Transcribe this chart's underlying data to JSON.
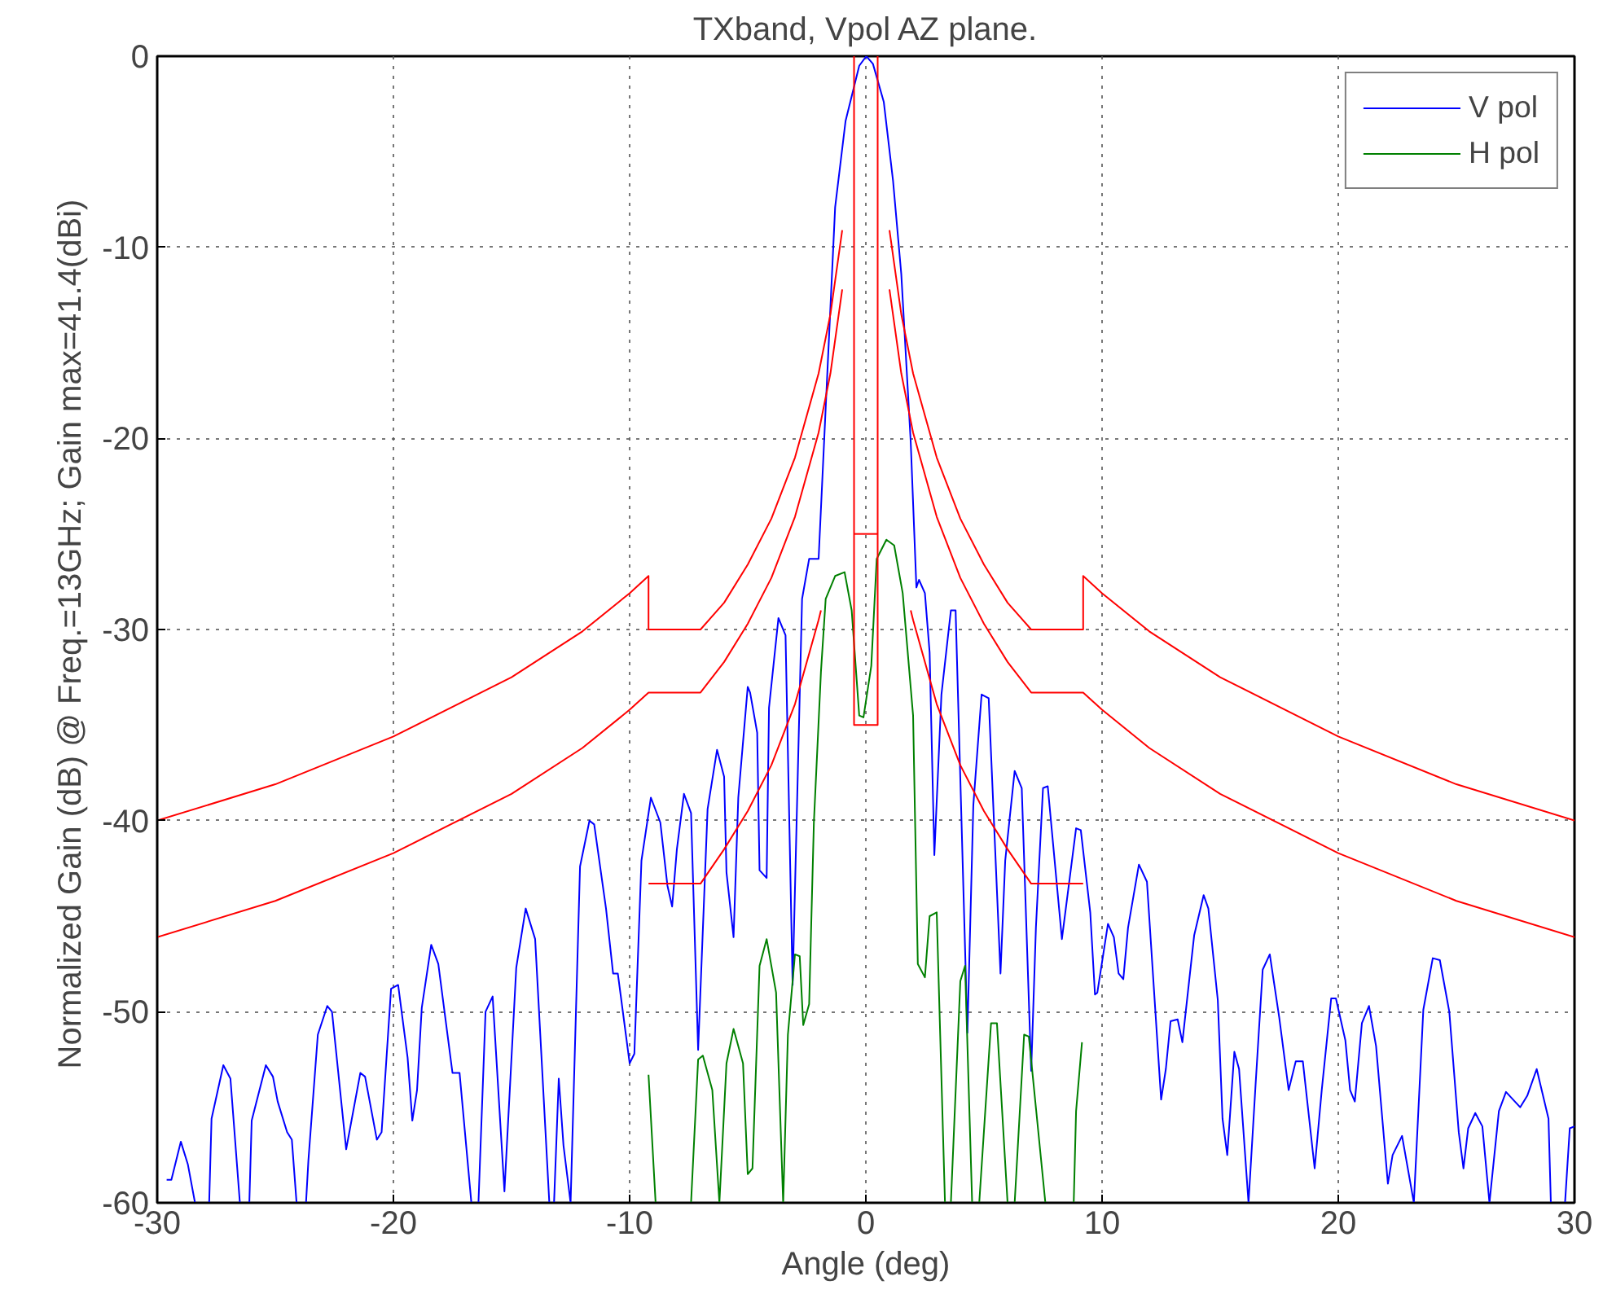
{
  "chart_data": {
    "type": "line",
    "title": "TXband, Vpol AZ plane.",
    "xlabel": "Angle (deg)",
    "ylabel": "Normalized Gain (dB)  @ Freq.=13GHz; Gain max=41.4(dBi)",
    "xlim": [
      -30,
      30
    ],
    "ylim": [
      -60,
      0
    ],
    "xticks": [
      -30,
      -20,
      -10,
      0,
      10,
      20,
      30
    ],
    "yticks": [
      -60,
      -50,
      -40,
      -30,
      -20,
      -10,
      0
    ],
    "grid": true,
    "legend": "top right",
    "series": [
      {
        "name": "V pol",
        "color": "#0000ff",
        "x": [
          -29.6,
          -29.4,
          -29.0,
          -28.7,
          -28.4,
          -27.8,
          -27.7,
          -27.2,
          -26.9,
          -26.5,
          -26.1,
          -26.0,
          -25.4,
          -25.1,
          -24.9,
          -24.5,
          -24.3,
          -24.1,
          -23.7,
          -23.6,
          -23.2,
          -22.8,
          -22.6,
          -22.0,
          -21.4,
          -21.2,
          -20.7,
          -20.5,
          -20.1,
          -19.8,
          -19.4,
          -19.2,
          -19.0,
          -18.8,
          -18.4,
          -18.1,
          -17.5,
          -17.2,
          -16.7,
          -16.4,
          -16.1,
          -15.8,
          -15.3,
          -14.8,
          -14.4,
          -14.0,
          -13.4,
          -13.2,
          -13.0,
          -12.8,
          -12.5,
          -12.1,
          -11.7,
          -11.5,
          -11.0,
          -10.7,
          -10.5,
          -10.0,
          -9.8,
          -9.5,
          -9.1,
          -8.7,
          -8.4,
          -8.2,
          -8.0,
          -7.7,
          -7.4,
          -7.1,
          -6.7,
          -6.3,
          -6.0,
          -5.9,
          -5.6,
          -5.4,
          -5.0,
          -4.9,
          -4.6,
          -4.5,
          -4.2,
          -4.1,
          -3.7,
          -3.4,
          -3.1,
          -2.7,
          -2.4,
          -2.0,
          -1.7,
          -1.3,
          -0.86,
          -0.28,
          0.02,
          0.3,
          0.76,
          1.15,
          1.5,
          1.9,
          2.14,
          2.25,
          2.5,
          2.7,
          2.9,
          3.2,
          3.6,
          3.8,
          4.3,
          4.55,
          4.9,
          5.2,
          5.7,
          5.9,
          6.3,
          6.6,
          7.0,
          7.2,
          7.5,
          7.7,
          8.3,
          8.9,
          9.1,
          9.5,
          9.7,
          9.8,
          10.25,
          10.5,
          10.7,
          10.9,
          11.1,
          11.56,
          11.9,
          12.5,
          12.7,
          12.9,
          13.2,
          13.4,
          13.9,
          14.3,
          14.5,
          14.9,
          15.1,
          15.3,
          15.6,
          15.8,
          16.2,
          16.5,
          16.8,
          17.1,
          17.5,
          17.9,
          18.2,
          18.5,
          19.0,
          19.3,
          19.7,
          19.9,
          20.3,
          20.5,
          20.7,
          21.0,
          21.3,
          21.6,
          22.1,
          22.3,
          22.7,
          23.2,
          23.6,
          24.0,
          24.3,
          24.7,
          25.1,
          25.3,
          25.5,
          25.8,
          26.1,
          26.4,
          26.8,
          27.1,
          27.7,
          28.0,
          28.4,
          28.9,
          29.0,
          29.6,
          29.8,
          30.0
        ],
        "values": [
          -58.8,
          -58.8,
          -56.8,
          -58.0,
          -60,
          -60,
          -55.6,
          -52.8,
          -53.5,
          -60,
          -60,
          -55.7,
          -52.8,
          -53.4,
          -54.7,
          -56.3,
          -56.7,
          -60,
          -60,
          -57.8,
          -51.2,
          -49.7,
          -50.0,
          -57.2,
          -53.2,
          -53.4,
          -56.7,
          -56.3,
          -48.8,
          -48.6,
          -52.4,
          -55.7,
          -54.1,
          -49.8,
          -46.5,
          -47.5,
          -53.2,
          -53.2,
          -60,
          -60,
          -50.0,
          -49.2,
          -59.4,
          -47.7,
          -44.6,
          -46.2,
          -60,
          -60,
          -53.5,
          -57.0,
          -60,
          -42.4,
          -40.0,
          -40.2,
          -44.6,
          -48.0,
          -48.0,
          -52.7,
          -52.2,
          -42.1,
          -38.8,
          -40.1,
          -43.4,
          -44.5,
          -41.5,
          -38.6,
          -39.6,
          -52.0,
          -39.4,
          -36.3,
          -37.7,
          -42.7,
          -46.1,
          -38.8,
          -33.0,
          -33.3,
          -35.4,
          -42.6,
          -43.0,
          -34.1,
          -29.4,
          -30.3,
          -48.6,
          -28.4,
          -26.3,
          -26.3,
          -18.4,
          -7.9,
          -3.4,
          -0.5,
          0,
          -0.4,
          -2.4,
          -6.5,
          -11.4,
          -20.2,
          -27.8,
          -27.4,
          -28.1,
          -31.2,
          -41.8,
          -33.4,
          -29.0,
          -29.0,
          -51.1,
          -39.2,
          -33.4,
          -33.6,
          -48.0,
          -42.1,
          -37.4,
          -38.3,
          -53.1,
          -45.6,
          -38.3,
          -38.2,
          -46.2,
          -40.4,
          -40.5,
          -44.8,
          -49.1,
          -49.0,
          -45.4,
          -46.1,
          -48.0,
          -48.3,
          -45.6,
          -42.3,
          -43.2,
          -54.6,
          -53.0,
          -50.5,
          -50.4,
          -51.6,
          -46.0,
          -43.9,
          -44.6,
          -49.4,
          -55.6,
          -57.5,
          -52.1,
          -53.0,
          -60,
          -53.8,
          -47.8,
          -47.0,
          -50.3,
          -54.1,
          -52.6,
          -52.6,
          -58.2,
          -54.1,
          -49.3,
          -49.3,
          -51.5,
          -54.1,
          -54.7,
          -50.6,
          -49.7,
          -51.8,
          -59.0,
          -57.5,
          -56.5,
          -60,
          -49.9,
          -47.2,
          -47.3,
          -50.0,
          -56.3,
          -58.2,
          -56.1,
          -55.3,
          -56.0,
          -60,
          -55.2,
          -54.2,
          -55.0,
          -54.4,
          -53.0,
          -55.6,
          -60,
          -60,
          -56.1,
          -56.0
        ]
      },
      {
        "name": "H pol",
        "color": "#008000",
        "x": [
          -9.2,
          -8.9,
          -7.4,
          -7.1,
          -6.9,
          -6.5,
          -6.2,
          -5.9,
          -5.6,
          -5.2,
          -5.0,
          -4.8,
          -4.5,
          -4.2,
          -3.8,
          -3.5,
          -3.3,
          -3.0,
          -2.8,
          -2.65,
          -2.4,
          -2.2,
          -1.9,
          -1.7,
          -1.3,
          -0.9,
          -0.6,
          -0.28,
          -0.1,
          0.23,
          0.46,
          0.87,
          1.2,
          1.56,
          2.0,
          2.2,
          2.5,
          2.7,
          3.0,
          3.35,
          3.6,
          4.0,
          4.2,
          4.5,
          4.8,
          5.3,
          5.55,
          6.0,
          6.3,
          6.7,
          6.9,
          7.6,
          8.8,
          8.9,
          9.15
        ],
        "values": [
          -53.3,
          -60,
          -60,
          -52.5,
          -52.3,
          -54.1,
          -60,
          -52.7,
          -50.9,
          -52.7,
          -58.5,
          -58.2,
          -47.6,
          -46.2,
          -49.0,
          -60,
          -51.2,
          -47.0,
          -47.1,
          -50.7,
          -49.6,
          -40.1,
          -32.2,
          -28.4,
          -27.2,
          -27.0,
          -29.0,
          -34.5,
          -34.6,
          -31.9,
          -26.3,
          -25.3,
          -25.6,
          -28.1,
          -34.5,
          -47.5,
          -48.2,
          -45.0,
          -44.8,
          -60,
          -60,
          -48.4,
          -47.6,
          -60,
          -60,
          -50.6,
          -50.6,
          -60,
          -60,
          -51.2,
          -51.3,
          -60,
          -60,
          -55.2,
          -51.6
        ]
      },
      {
        "color": "#ff0000",
        "x": [
          -30,
          -25,
          -20,
          -15,
          -12,
          -10,
          -9.2,
          -9.2,
          -7,
          -6,
          -5,
          -4,
          -3,
          -2,
          -1.5,
          -1
        ],
        "values": [
          -40.0,
          -38.1,
          -35.6,
          -32.5,
          -30.1,
          -28.1,
          -27.2,
          -30,
          -30,
          -28.6,
          -26.6,
          -24.2,
          -21.0,
          -16.6,
          -13.5,
          -9.1
        ]
      },
      {
        "color": "#ff0000",
        "x": [
          1,
          1.5,
          2,
          3,
          4,
          5,
          6,
          7,
          9.2,
          9.2,
          10,
          12,
          15,
          20,
          25,
          30
        ],
        "values": [
          -9.1,
          -13.5,
          -16.6,
          -21.0,
          -24.2,
          -26.6,
          -28.6,
          -30,
          -30,
          -27.2,
          -28.1,
          -30.1,
          -32.5,
          -35.6,
          -38.1,
          -40.0
        ]
      },
      {
        "color": "#ff0000",
        "x": [
          -30,
          -25,
          -20,
          -15,
          -12,
          -10,
          -9.2,
          -7,
          -6,
          -5,
          -4,
          -3,
          -2,
          -1.5,
          -1
        ],
        "values": [
          -46.1,
          -44.2,
          -41.7,
          -38.6,
          -36.2,
          -34.2,
          -33.3,
          -33.3,
          -31.7,
          -29.7,
          -27.3,
          -24.1,
          -19.7,
          -16.6,
          -12.2
        ]
      },
      {
        "color": "#ff0000",
        "x": [
          1,
          1.5,
          2,
          3,
          4,
          5,
          6,
          7,
          9.2,
          10,
          12,
          15,
          20,
          25,
          30
        ],
        "values": [
          -12.2,
          -16.6,
          -19.7,
          -24.1,
          -27.3,
          -29.7,
          -31.7,
          -33.3,
          -33.3,
          -34.2,
          -36.2,
          -38.6,
          -41.7,
          -44.2,
          -46.1
        ]
      },
      {
        "color": "#ff0000",
        "x": [
          -9.2,
          -7,
          -6,
          -5,
          -4,
          -3,
          -2,
          -1.9
        ],
        "values": [
          -43.3,
          -43.3,
          -41.5,
          -39.5,
          -37.1,
          -33.9,
          -29.5,
          -29.0
        ]
      },
      {
        "color": "#ff0000",
        "x": [
          1.9,
          2,
          3,
          4,
          5,
          6,
          7,
          9.2
        ],
        "values": [
          -29.0,
          -29.5,
          -33.9,
          -37.1,
          -39.5,
          -41.5,
          -43.3,
          -43.3
        ]
      },
      {
        "color": "#ff0000",
        "x": [
          -0.5,
          -0.5,
          0.5,
          0.5
        ],
        "values": [
          0,
          -35,
          -35,
          0
        ]
      },
      {
        "color": "#ff0000",
        "x": [
          -0.5,
          0.5
        ],
        "values": [
          -25,
          -25
        ]
      }
    ]
  }
}
